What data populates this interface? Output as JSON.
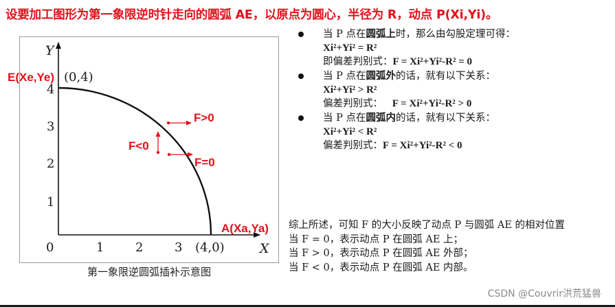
{
  "title": "设要加工图形为第一象限逆时针走向的圆弧 AE，以原点为圆心，半径为 R，动点 P(Xi,Yi)。",
  "diagram": {
    "axis_y": "Y",
    "axis_x": "X",
    "origin": "0",
    "x_ticks": [
      "1",
      "2",
      "3"
    ],
    "y_ticks": [
      "1",
      "2",
      "3",
      "4"
    ],
    "point_e_label": "E(Xe,Ye)",
    "point_e_coord": "(0,4)",
    "point_a_label": "A(Xa,Ya)",
    "point_a_coord": "(4,0)",
    "label_f_gt": "F>0",
    "label_f_lt": "F<0",
    "label_f_eq": "F=0",
    "caption": "第一象限逆圆弧插补示意图",
    "colors": {
      "label": "#e0121b",
      "arc": "#111111"
    }
  },
  "cases": [
    {
      "desc_prefix": "当 P 点在",
      "desc_emph": "圆弧上",
      "desc_suffix": "时，那么由勾股定理可得：",
      "relation": "Xi²+Yi² = R²",
      "disc_label": "即偏差判别式：",
      "disc_formula": "F = Xi²+Yi²-R² = 0"
    },
    {
      "desc_prefix": "当 P 点在",
      "desc_emph": "圆弧外",
      "desc_suffix": "的话，就有以下关系：",
      "relation": "Xi²+Yi² > R²",
      "disc_label": "偏差判别式：",
      "disc_formula": "F = Xi²+Yi²-R² > 0"
    },
    {
      "desc_prefix": "当 P 点在",
      "desc_emph": "圆弧内",
      "desc_suffix": "的话，就有以下关系：",
      "relation": "Xi²+Yi² < R²",
      "disc_label": "偏差判别式：",
      "disc_formula": "F = Xi²+Yi²-R² < 0"
    }
  ],
  "summary": [
    "综上所述，可知 F 的大小反映了动点 P 与圆弧 AE 的相对位置",
    "当 F = 0，表示动点 P 在圆弧 AE 上；",
    "当 F > 0，表示动点 P 在圆弧 AE 外部；",
    "当 F < 0，表示动点 P 在圆弧 AE 内部。"
  ],
  "watermark": "CSDN @Couvrir洪荒猛兽"
}
